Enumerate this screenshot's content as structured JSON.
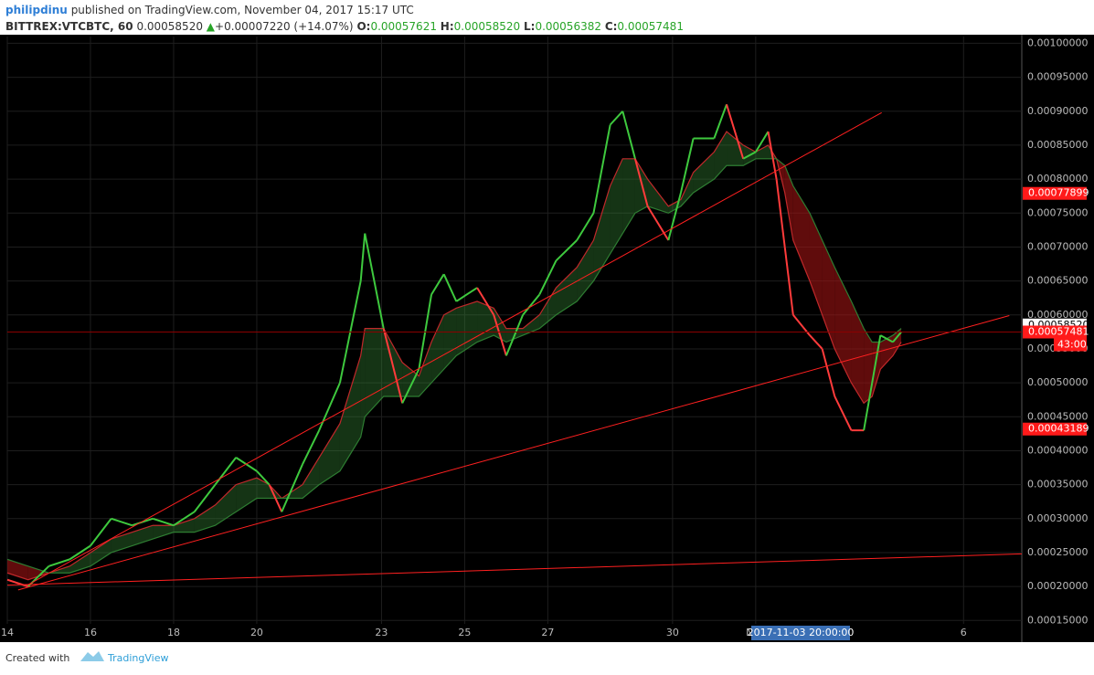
{
  "header": {
    "user": "philipdinu",
    "published": "published on TradingView.com, November 04, 2017 15:17 UTC",
    "symbol": "BITTREX:VTCBTC, 60",
    "last": "0.00058520",
    "arrow": "▲",
    "change": "+0.00007220 (+14.07%)",
    "open_label": "O:",
    "open": "0.00057621",
    "high_label": "H:",
    "high": "0.00058520",
    "low_label": "L:",
    "low": "0.00056382",
    "close_label": "C:",
    "close": "0.00057481"
  },
  "footer": {
    "created": "Created with",
    "brand": "TradingView"
  },
  "chart_data": {
    "type": "line",
    "x": [
      0,
      0.5,
      1,
      1.5,
      2,
      2.5,
      3,
      3.5,
      4,
      4.5,
      5,
      5.5,
      6,
      6.3,
      6.6,
      7.1,
      7.5,
      8,
      8.5,
      8.6,
      9.05,
      9.5,
      9.9,
      10.2,
      10.5,
      10.8,
      11.3,
      11.7,
      12,
      12.4,
      12.8,
      13.2,
      13.7,
      14.1,
      14.5,
      14.8,
      15.1,
      15.4,
      15.9,
      16.2,
      16.5,
      17,
      17.3,
      17.7,
      18,
      18.3,
      18.5,
      18.7,
      18.9,
      19.3,
      19.6,
      19.9,
      20.3,
      20.6,
      20.8,
      21,
      21.3,
      21.5
    ],
    "series": [
      {
        "color": "#3ec93e",
        "down_color": "#ff3b3b",
        "values": [
          0.00021,
          0.0002,
          0.00023,
          0.00024,
          0.00026,
          0.0003,
          0.00029,
          0.0003,
          0.00029,
          0.00031,
          0.00035,
          0.00039,
          0.00037,
          0.00035,
          0.00031,
          0.00038,
          0.00043,
          0.0005,
          0.00065,
          0.00072,
          0.00058,
          0.00047,
          0.00052,
          0.00063,
          0.00066,
          0.00062,
          0.00064,
          0.0006,
          0.00054,
          0.0006,
          0.00063,
          0.00068,
          0.00071,
          0.00075,
          0.00088,
          0.0009,
          0.00083,
          0.00076,
          0.00071,
          0.00078,
          0.00086,
          0.00086,
          0.00091,
          0.00083,
          0.00084,
          0.00087,
          0.0008,
          0.0007,
          0.0006,
          0.00057,
          0.00055,
          0.00048,
          0.00043,
          0.00043,
          0.0005,
          0.00057,
          0.00056,
          0.00057481
        ]
      },
      {
        "color": "#c0282a",
        "values": [
          0.00022,
          0.00021,
          0.00022,
          0.00023,
          0.00025,
          0.00027,
          0.00028,
          0.00029,
          0.00029,
          0.0003,
          0.00032,
          0.00035,
          0.00036,
          0.00035,
          0.00033,
          0.00035,
          0.00039,
          0.00044,
          0.00054,
          0.00058,
          0.00058,
          0.00053,
          0.00051,
          0.00056,
          0.0006,
          0.00061,
          0.00062,
          0.00061,
          0.00058,
          0.00058,
          0.0006,
          0.00064,
          0.00067,
          0.00071,
          0.00079,
          0.00083,
          0.00083,
          0.0008,
          0.00076,
          0.00077,
          0.00081,
          0.00084,
          0.00087,
          0.00085,
          0.00084,
          0.00085,
          0.00083,
          0.00078,
          0.00071,
          0.00065,
          0.0006,
          0.00055,
          0.0005,
          0.00047,
          0.00048,
          0.00052,
          0.00054,
          0.00056
        ]
      },
      {
        "color": "#2e7d32",
        "values": [
          0.00024,
          0.00023,
          0.00022,
          0.00022,
          0.00023,
          0.00025,
          0.00026,
          0.00027,
          0.00028,
          0.00028,
          0.00029,
          0.00031,
          0.00033,
          0.00033,
          0.00033,
          0.00033,
          0.00035,
          0.00037,
          0.00042,
          0.00045,
          0.00048,
          0.00048,
          0.00048,
          0.0005,
          0.00052,
          0.00054,
          0.00056,
          0.00057,
          0.00056,
          0.00057,
          0.00058,
          0.0006,
          0.00062,
          0.00065,
          0.00069,
          0.00072,
          0.00075,
          0.00076,
          0.00075,
          0.00076,
          0.00078,
          0.0008,
          0.00082,
          0.00082,
          0.00083,
          0.00083,
          0.00083,
          0.00082,
          0.00079,
          0.00075,
          0.00071,
          0.00067,
          0.00062,
          0.00058,
          0.00056,
          0.00056,
          0.00057,
          0.00058
        ]
      }
    ],
    "ribbon_up_color": "rgba(60,150,60,0.35)",
    "ribbon_down_color": "rgba(160,20,20,0.6)",
    "trendlines": [
      {
        "x": [
          0.48,
          21.03
        ],
        "y": [
          0.000202,
          0.000898
        ],
        "color": "#ff2020"
      },
      {
        "x": [
          0.26,
          24.1
        ],
        "y": [
          0.000195,
          0.000599
        ],
        "color": "#ff2020"
      },
      {
        "x": [
          0,
          24.4
        ],
        "y": [
          0.000202,
          0.000248
        ],
        "color": "#ff2020"
      }
    ],
    "xlim": [
      0,
      24.4
    ],
    "ylim": [
      0.000145,
      0.00101
    ],
    "xticks": [
      {
        "value": 0,
        "label": "14"
      },
      {
        "value": 2,
        "label": "16"
      },
      {
        "value": 4,
        "label": "18"
      },
      {
        "value": 6,
        "label": "20"
      },
      {
        "value": 9,
        "label": "23"
      },
      {
        "value": 11,
        "label": "25"
      },
      {
        "value": 13,
        "label": "27"
      },
      {
        "value": 16,
        "label": "30"
      },
      {
        "value": 18,
        "label": "Nov"
      },
      {
        "value": 23,
        "label": "6"
      }
    ],
    "yticks": [
      {
        "value": 0.00015,
        "label": "0.00015000"
      },
      {
        "value": 0.0002,
        "label": "0.00020000"
      },
      {
        "value": 0.00025,
        "label": "0.00025000"
      },
      {
        "value": 0.0003,
        "label": "0.00030000"
      },
      {
        "value": 0.00035,
        "label": "0.00035000"
      },
      {
        "value": 0.0004,
        "label": "0.00040000"
      },
      {
        "value": 0.00045,
        "label": "0.00045000"
      },
      {
        "value": 0.0005,
        "label": "0.00050000"
      },
      {
        "value": 0.00055,
        "label": "0.00055000"
      },
      {
        "value": 0.0006,
        "label": "0.00060000"
      },
      {
        "value": 0.00065,
        "label": "0.00065000"
      },
      {
        "value": 0.0007,
        "label": "0.00070000"
      },
      {
        "value": 0.00075,
        "label": "0.00075000"
      },
      {
        "value": 0.0008,
        "label": "0.00080000"
      },
      {
        "value": 0.00085,
        "label": "0.00085000"
      },
      {
        "value": 0.0009,
        "label": "0.00090000"
      },
      {
        "value": 0.00095,
        "label": "0.00095000"
      },
      {
        "value": 0.001,
        "label": "0.00100000"
      }
    ],
    "grid": true,
    "price_tags": [
      {
        "value": 0.00077899,
        "label": "0.00077899",
        "color": "#ff1a1a"
      },
      {
        "value": 0.0005852,
        "label": "0.00058520",
        "color": "#ffffff"
      },
      {
        "value": 0.00057481,
        "label": "0.00057481",
        "color": "#ff1a1a",
        "line": true
      },
      {
        "value": 0.00043189,
        "label": "0.00043189",
        "color": "#ff1a1a"
      }
    ],
    "countdown": "43:00",
    "crosshair_label": "2017-11-03 20:00:00"
  }
}
